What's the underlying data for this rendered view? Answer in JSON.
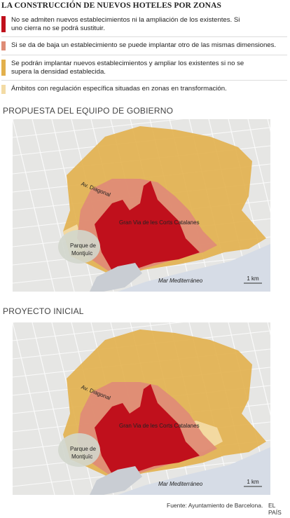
{
  "header": {
    "title": "LA CONSTRUCCIÓN DE NUEVOS HOTELES POR ZONAS"
  },
  "legend": [
    {
      "color": "#c0101c",
      "text": "No se admiten nuevos establecimientos ni la ampliación de los existentes. Si uno cierra no se podrá sustituir."
    },
    {
      "color": "#df8c76",
      "text": "Si se da de baja un establecimiento se puede implantar otro de las mismas dimensiones."
    },
    {
      "color": "#e2b04c",
      "text": "Se podrán implantar nuevos establecimientos y ampliar los existentes si no se supera la densidad establecida."
    },
    {
      "color": "#f3dba4",
      "text": "Ámbitos con regulación específica situadas en zonas en transformación."
    }
  ],
  "maps": [
    {
      "heading": "PROPUESTA DEL EQUIPO DE GOBIERNO",
      "labels": {
        "avenue": "Av. Diagonal",
        "street": "Gran Via de les Corts Catalanes",
        "park": [
          "Parque de",
          "Montjuïc"
        ],
        "sea": "Mar Mediterráneo",
        "scale": "1 km"
      }
    },
    {
      "heading": "PROYECTO INICIAL",
      "labels": {
        "avenue": "Av. Diagonal",
        "street": "Gran Via de les Corts Catalanes",
        "park": [
          "Parque de",
          "Montjuïc"
        ],
        "sea": "Mar Mediterráneo",
        "scale": "1 km"
      }
    }
  ],
  "footer": {
    "source": "Fuente: Ayuntamiento de Barcelona.",
    "brand": "EL PAÍS"
  }
}
